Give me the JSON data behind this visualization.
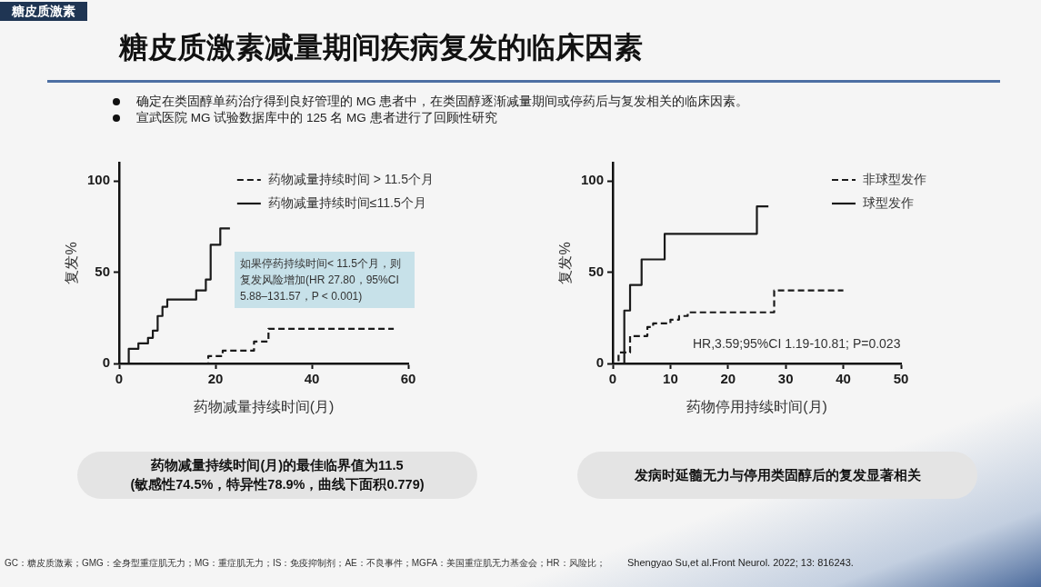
{
  "chart_data": [
    {
      "type": "step",
      "title": "糖皮质激素减量期间疾病复发的临床因素",
      "xlabel": "药物减量持续时间(月)",
      "ylabel": "复发%",
      "series": [
        {
          "name": "药物减量持续时间 > 11.5个月",
          "color": "#1a1a1a",
          "line_style": "dashed",
          "x": [
            0,
            18.5,
            21.5,
            28,
            31,
            57
          ],
          "values": [
            0,
            4,
            7,
            12,
            19,
            19
          ]
        },
        {
          "name": "药物减量持续时间≤11.5个月",
          "color": "#1a1a1a",
          "line_style": "solid",
          "x": [
            0,
            2,
            4,
            6,
            7,
            8,
            9,
            10,
            16,
            18,
            19,
            21,
            23
          ],
          "values": [
            0,
            8,
            11,
            14,
            18,
            26,
            31,
            35,
            40,
            46,
            65,
            74,
            74
          ]
        }
      ],
      "xlim": [
        0,
        60
      ],
      "xticks": [
        0,
        20,
        40,
        60
      ],
      "ylim": [
        0,
        110
      ],
      "yticks": [
        0,
        50,
        100
      ],
      "legend": "top right",
      "annotations": [
        "糖皮质激素",
        "确定在类固醇单药治疗得到良好管理的 MG 患者中，在类固醇逐渐减量期间或停药后与复发相关的临床因素。",
        "宣武医院 MG 试验数据库中的 125 名 MG 患者进行了回顾性研究",
        "如果停药持续时间< 11.5个月，则复发风险增加(HR 27.80，95%CI 5.88–131.57，P < 0.001)",
        "药物减量持续时间(月)的最佳临界值为11.5\n(敏感性74.5%，特异性78.9%，曲线下面积0.779)",
        "GC：糖皮质激素；GMG：全身型重症肌无力；MG：重症肌无力；IS：免疫抑制剂；AE：不良事件；MGFA：美国重症肌无力基金会；HR：风险比；"
      ]
    },
    {
      "type": "step",
      "xlabel": "药物停用持续时间(月)",
      "ylabel": "复发%",
      "series": [
        {
          "name": "非球型发作",
          "color": "#1a1a1a",
          "line_style": "dashed",
          "x": [
            0,
            1,
            3,
            6,
            7,
            10,
            11.5,
            13,
            28,
            40
          ],
          "values": [
            0,
            6,
            15,
            20,
            22,
            24,
            26,
            28,
            40,
            40
          ]
        },
        {
          "name": "球型发作",
          "color": "#1a1a1a",
          "line_style": "solid",
          "x": [
            0,
            2,
            3,
            5,
            9,
            25,
            27
          ],
          "values": [
            0,
            29,
            43,
            57,
            71,
            86,
            86
          ]
        }
      ],
      "xlim": [
        0,
        50
      ],
      "xticks": [
        0,
        10,
        20,
        30,
        40,
        50
      ],
      "ylim": [
        0,
        110
      ],
      "yticks": [
        0,
        50,
        100
      ],
      "legend": "top right",
      "annotations": [
        "HR,3.59;95%CI 1.19-10.81; P=0.023",
        "发病时延髓无力与停用类固醇后的复发显著相关",
        "Shengyao Su,et al.Front Neurol. 2022; 13: 816243."
      ]
    }
  ]
}
